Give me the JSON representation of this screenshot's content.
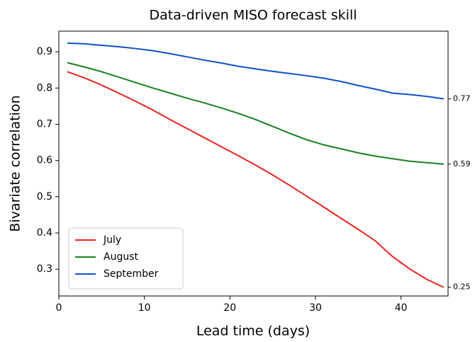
{
  "chart_data": {
    "type": "line",
    "title": "Data-driven MISO forecast skill",
    "x_label": "Lead time (days)",
    "y_label": "Bivariate correlation",
    "x": [
      1,
      3,
      5,
      7,
      9,
      11,
      13,
      15,
      17,
      19,
      21,
      23,
      25,
      27,
      29,
      31,
      33,
      35,
      37,
      39,
      41,
      43,
      45
    ],
    "series": [
      {
        "name": "July",
        "color": "#e8221f",
        "values": [
          0.845,
          0.828,
          0.808,
          0.786,
          0.763,
          0.739,
          0.713,
          0.688,
          0.663,
          0.638,
          0.613,
          0.587,
          0.56,
          0.531,
          0.501,
          0.471,
          0.44,
          0.41,
          0.378,
          0.335,
          0.301,
          0.272,
          0.25
        ]
      },
      {
        "name": "August",
        "color": "#1a7f22",
        "values": [
          0.87,
          0.858,
          0.845,
          0.83,
          0.815,
          0.8,
          0.786,
          0.772,
          0.759,
          0.745,
          0.73,
          0.713,
          0.694,
          0.675,
          0.657,
          0.643,
          0.632,
          0.621,
          0.612,
          0.605,
          0.598,
          0.594,
          0.59
        ]
      },
      {
        "name": "September",
        "color": "#1050c8",
        "values": [
          0.924,
          0.922,
          0.918,
          0.914,
          0.909,
          0.903,
          0.895,
          0.886,
          0.877,
          0.869,
          0.86,
          0.853,
          0.846,
          0.84,
          0.834,
          0.827,
          0.818,
          0.807,
          0.797,
          0.786,
          0.782,
          0.777,
          0.77
        ]
      }
    ],
    "xlim": [
      0,
      45.5
    ],
    "ylim": [
      0.226,
      0.957
    ],
    "xticks": [
      0,
      10,
      20,
      30,
      40
    ],
    "yticks": [
      0.3,
      0.4,
      0.5,
      0.6,
      0.7,
      0.8,
      0.9
    ],
    "legend": "lower left",
    "grid": false
  }
}
